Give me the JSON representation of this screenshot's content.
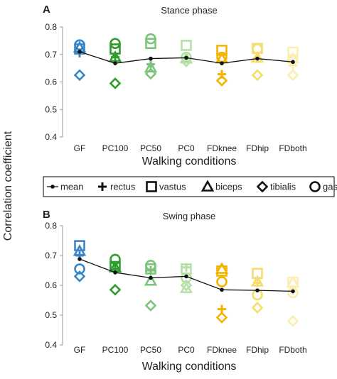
{
  "figure": {
    "ylabel": "Correlation coefficient"
  },
  "legend": {
    "items": [
      {
        "key": "mean",
        "label": "mean",
        "marker": "line-dot"
      },
      {
        "key": "rectus",
        "label": "rectus",
        "marker": "plus"
      },
      {
        "key": "vastus",
        "label": "vastus",
        "marker": "square"
      },
      {
        "key": "biceps",
        "label": "biceps",
        "marker": "triangle"
      },
      {
        "key": "tibialis",
        "label": "tibialis",
        "marker": "diamond"
      },
      {
        "key": "gastro",
        "label": "gastro",
        "marker": "circle"
      }
    ]
  },
  "chart_data": [
    {
      "type": "scatter",
      "panel_label": "A",
      "title": "Stance phase",
      "xlabel": "Walking conditions",
      "ylabel": "Correlation coefficient",
      "ylim": [
        0.4,
        0.8
      ],
      "yticks": [
        "0.8",
        "0.7",
        "0.6",
        "0.5",
        "0.4"
      ],
      "ytick_values": [
        0.8,
        0.7,
        0.6,
        0.5,
        0.4
      ],
      "categories": [
        "GF",
        "PC100",
        "PC50",
        "PC0",
        "FDknee",
        "FDhip",
        "FDboth"
      ],
      "category_colors": [
        "#3a87c8",
        "#2e9d2e",
        "#7cc47c",
        "#b6e0a8",
        "#f3b400",
        "#f6dc6e",
        "#fbeeb0"
      ],
      "grid": false,
      "series": [
        {
          "name": "mean",
          "values": [
            0.71,
            0.668,
            0.685,
            0.688,
            0.668,
            0.685,
            0.673
          ]
        },
        {
          "name": "rectus",
          "values": [
            0.705,
            0.69,
            0.665,
            0.685,
            0.628,
            0.685,
            0.66
          ]
        },
        {
          "name": "vastus",
          "values": [
            0.72,
            0.72,
            0.74,
            0.733,
            0.715,
            0.722,
            0.708
          ]
        },
        {
          "name": "biceps",
          "values": [
            0.725,
            0.69,
            0.652,
            0.685,
            0.685,
            0.688,
            0.685
          ]
        },
        {
          "name": "tibialis",
          "values": [
            0.625,
            0.595,
            0.63,
            0.675,
            0.605,
            0.625,
            0.625
          ]
        },
        {
          "name": "gastro",
          "values": [
            0.735,
            0.74,
            0.757,
            0.69,
            0.69,
            0.72,
            0.682
          ]
        }
      ]
    },
    {
      "type": "scatter",
      "panel_label": "B",
      "title": "Swing phase",
      "xlabel": "Walking conditions",
      "ylabel": "Correlation coefficient",
      "ylim": [
        0.4,
        0.8
      ],
      "yticks": [
        "0.8",
        "0.7",
        "0.6",
        "0.5",
        "0.4"
      ],
      "ytick_values": [
        0.8,
        0.7,
        0.6,
        0.5,
        0.4
      ],
      "categories": [
        "GF",
        "PC100",
        "PC50",
        "PC0",
        "FDknee",
        "FDhip",
        "FDboth"
      ],
      "category_colors": [
        "#3a87c8",
        "#2e9d2e",
        "#7cc47c",
        "#b6e0a8",
        "#f3b400",
        "#f6dc6e",
        "#fbeeb0"
      ],
      "grid": false,
      "series": [
        {
          "name": "mean",
          "values": [
            0.688,
            0.643,
            0.625,
            0.63,
            0.585,
            0.583,
            0.58
          ]
        },
        {
          "name": "rectus",
          "values": [
            0.7,
            0.655,
            0.65,
            0.66,
            0.52,
            0.608,
            0.582
          ]
        },
        {
          "name": "vastus",
          "values": [
            0.733,
            0.663,
            0.655,
            0.655,
            0.648,
            0.64,
            0.61
          ]
        },
        {
          "name": "biceps",
          "values": [
            0.715,
            0.66,
            0.615,
            0.59,
            0.655,
            0.612,
            0.61
          ]
        },
        {
          "name": "tibialis",
          "values": [
            0.63,
            0.585,
            0.532,
            0.6,
            0.492,
            0.525,
            0.48
          ]
        },
        {
          "name": "gastro",
          "values": [
            0.655,
            0.687,
            0.667,
            0.625,
            0.612,
            0.568,
            0.575
          ]
        }
      ]
    }
  ]
}
